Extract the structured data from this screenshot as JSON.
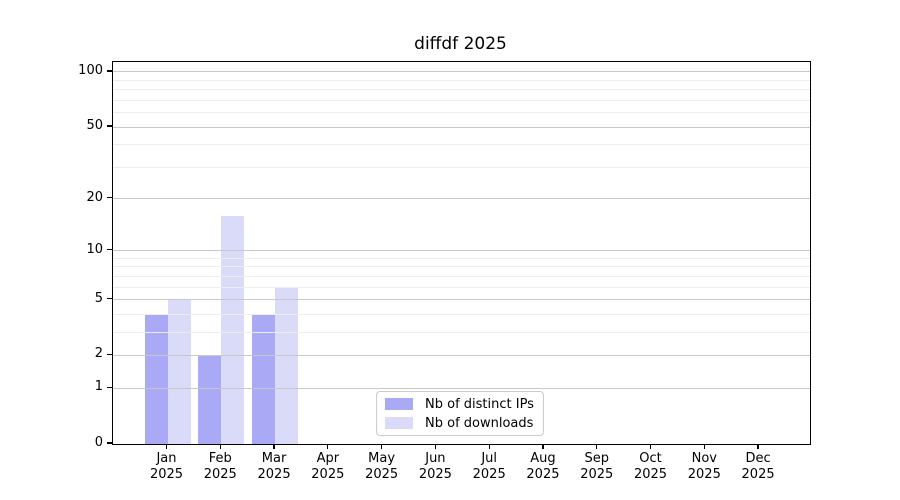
{
  "chart_data": {
    "type": "bar",
    "title": "diffdf 2025",
    "categories": [
      "Jan",
      "Feb",
      "Mar",
      "Apr",
      "May",
      "Jun",
      "Jul",
      "Aug",
      "Sep",
      "Oct",
      "Nov",
      "Dec"
    ],
    "x_year_label": "2025",
    "series": [
      {
        "name": "Nb of distinct IPs",
        "color": "#a9a9f5",
        "values": [
          4,
          2,
          4,
          0,
          0,
          0,
          0,
          0,
          0,
          0,
          0,
          0
        ]
      },
      {
        "name": "Nb of downloads",
        "color": "#dadaf9",
        "values": [
          5,
          16,
          6,
          0,
          0,
          0,
          0,
          0,
          0,
          0,
          0,
          0
        ]
      }
    ],
    "yscale": "log1p",
    "ytick_values": [
      100,
      50,
      20,
      10,
      5,
      2,
      1,
      0
    ],
    "ytick_labels": [
      "100",
      "50",
      "20",
      "10",
      "5",
      "2",
      "1",
      "0"
    ],
    "minor_grid_values": [
      3,
      4,
      6,
      7,
      8,
      9,
      30,
      40,
      60,
      70,
      80,
      90
    ],
    "grid": "horizontal",
    "legend": {
      "position": "lower-center",
      "entries": [
        "Nb of distinct IPs",
        "Nb of downloads"
      ]
    },
    "colors": {
      "major_grid": "#c8c8c8",
      "minor_grid": "#ededed",
      "axis": "#000000",
      "text": "#000000",
      "background": "#ffffff"
    }
  }
}
